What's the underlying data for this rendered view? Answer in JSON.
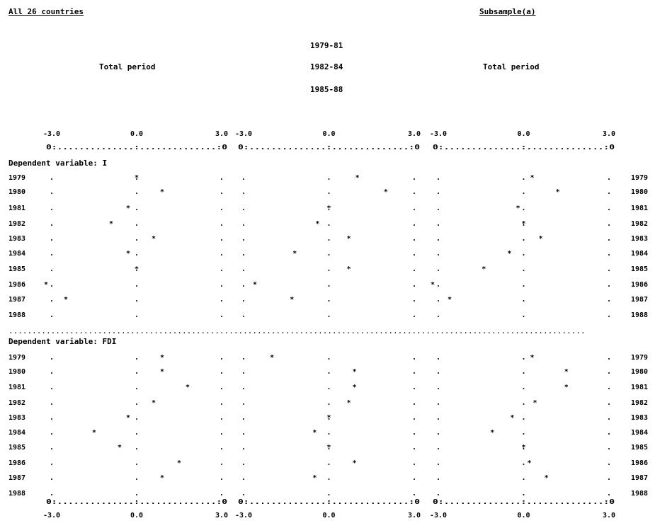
{
  "chart_data": {
    "type": "scatter",
    "header": {
      "left": "All 26 countries",
      "right": "Subsample(a)",
      "left_period": "Total period",
      "right_period": "Total period",
      "middle_periods": [
        "1979-81",
        "1982-84",
        "1985-88"
      ]
    },
    "axis": {
      "ticks": [
        "-3.0",
        "0.0",
        "3.0"
      ],
      "xlim": [
        -3.0,
        3.0
      ],
      "rule": "0:..............:..............:0"
    },
    "years": [
      "1979",
      "1980",
      "1981",
      "1982",
      "1983",
      "1984",
      "1985",
      "1986",
      "1987",
      "1988"
    ],
    "marker": "*",
    "panels_group_label": [
      "Total period",
      "1979-81 / 1982-84 / 1985-88",
      "Total period"
    ],
    "sections": [
      {
        "label": "Dependent variable: I",
        "panels": [
          [
            0.0,
            0.9,
            -0.3,
            -0.9,
            0.6,
            -0.3,
            0.0,
            -3.2,
            -2.5,
            null
          ],
          [
            1.0,
            2.0,
            0.0,
            -0.4,
            0.7,
            -1.2,
            0.7,
            -2.6,
            -1.3,
            null
          ],
          [
            0.3,
            1.2,
            -0.2,
            0.0,
            0.6,
            -0.5,
            -1.4,
            -3.2,
            -2.6,
            null
          ]
        ]
      },
      {
        "label": "Dependent variable: FDI",
        "panels": [
          [
            0.9,
            0.9,
            1.8,
            0.6,
            -0.3,
            -1.5,
            -0.6,
            1.5,
            0.9,
            null
          ],
          [
            -2.0,
            0.9,
            0.9,
            0.7,
            0.0,
            -0.5,
            0.0,
            0.9,
            -0.5,
            null
          ],
          [
            0.3,
            1.5,
            1.5,
            0.4,
            -0.4,
            -1.1,
            0.0,
            0.2,
            0.8,
            null
          ]
        ]
      }
    ]
  }
}
